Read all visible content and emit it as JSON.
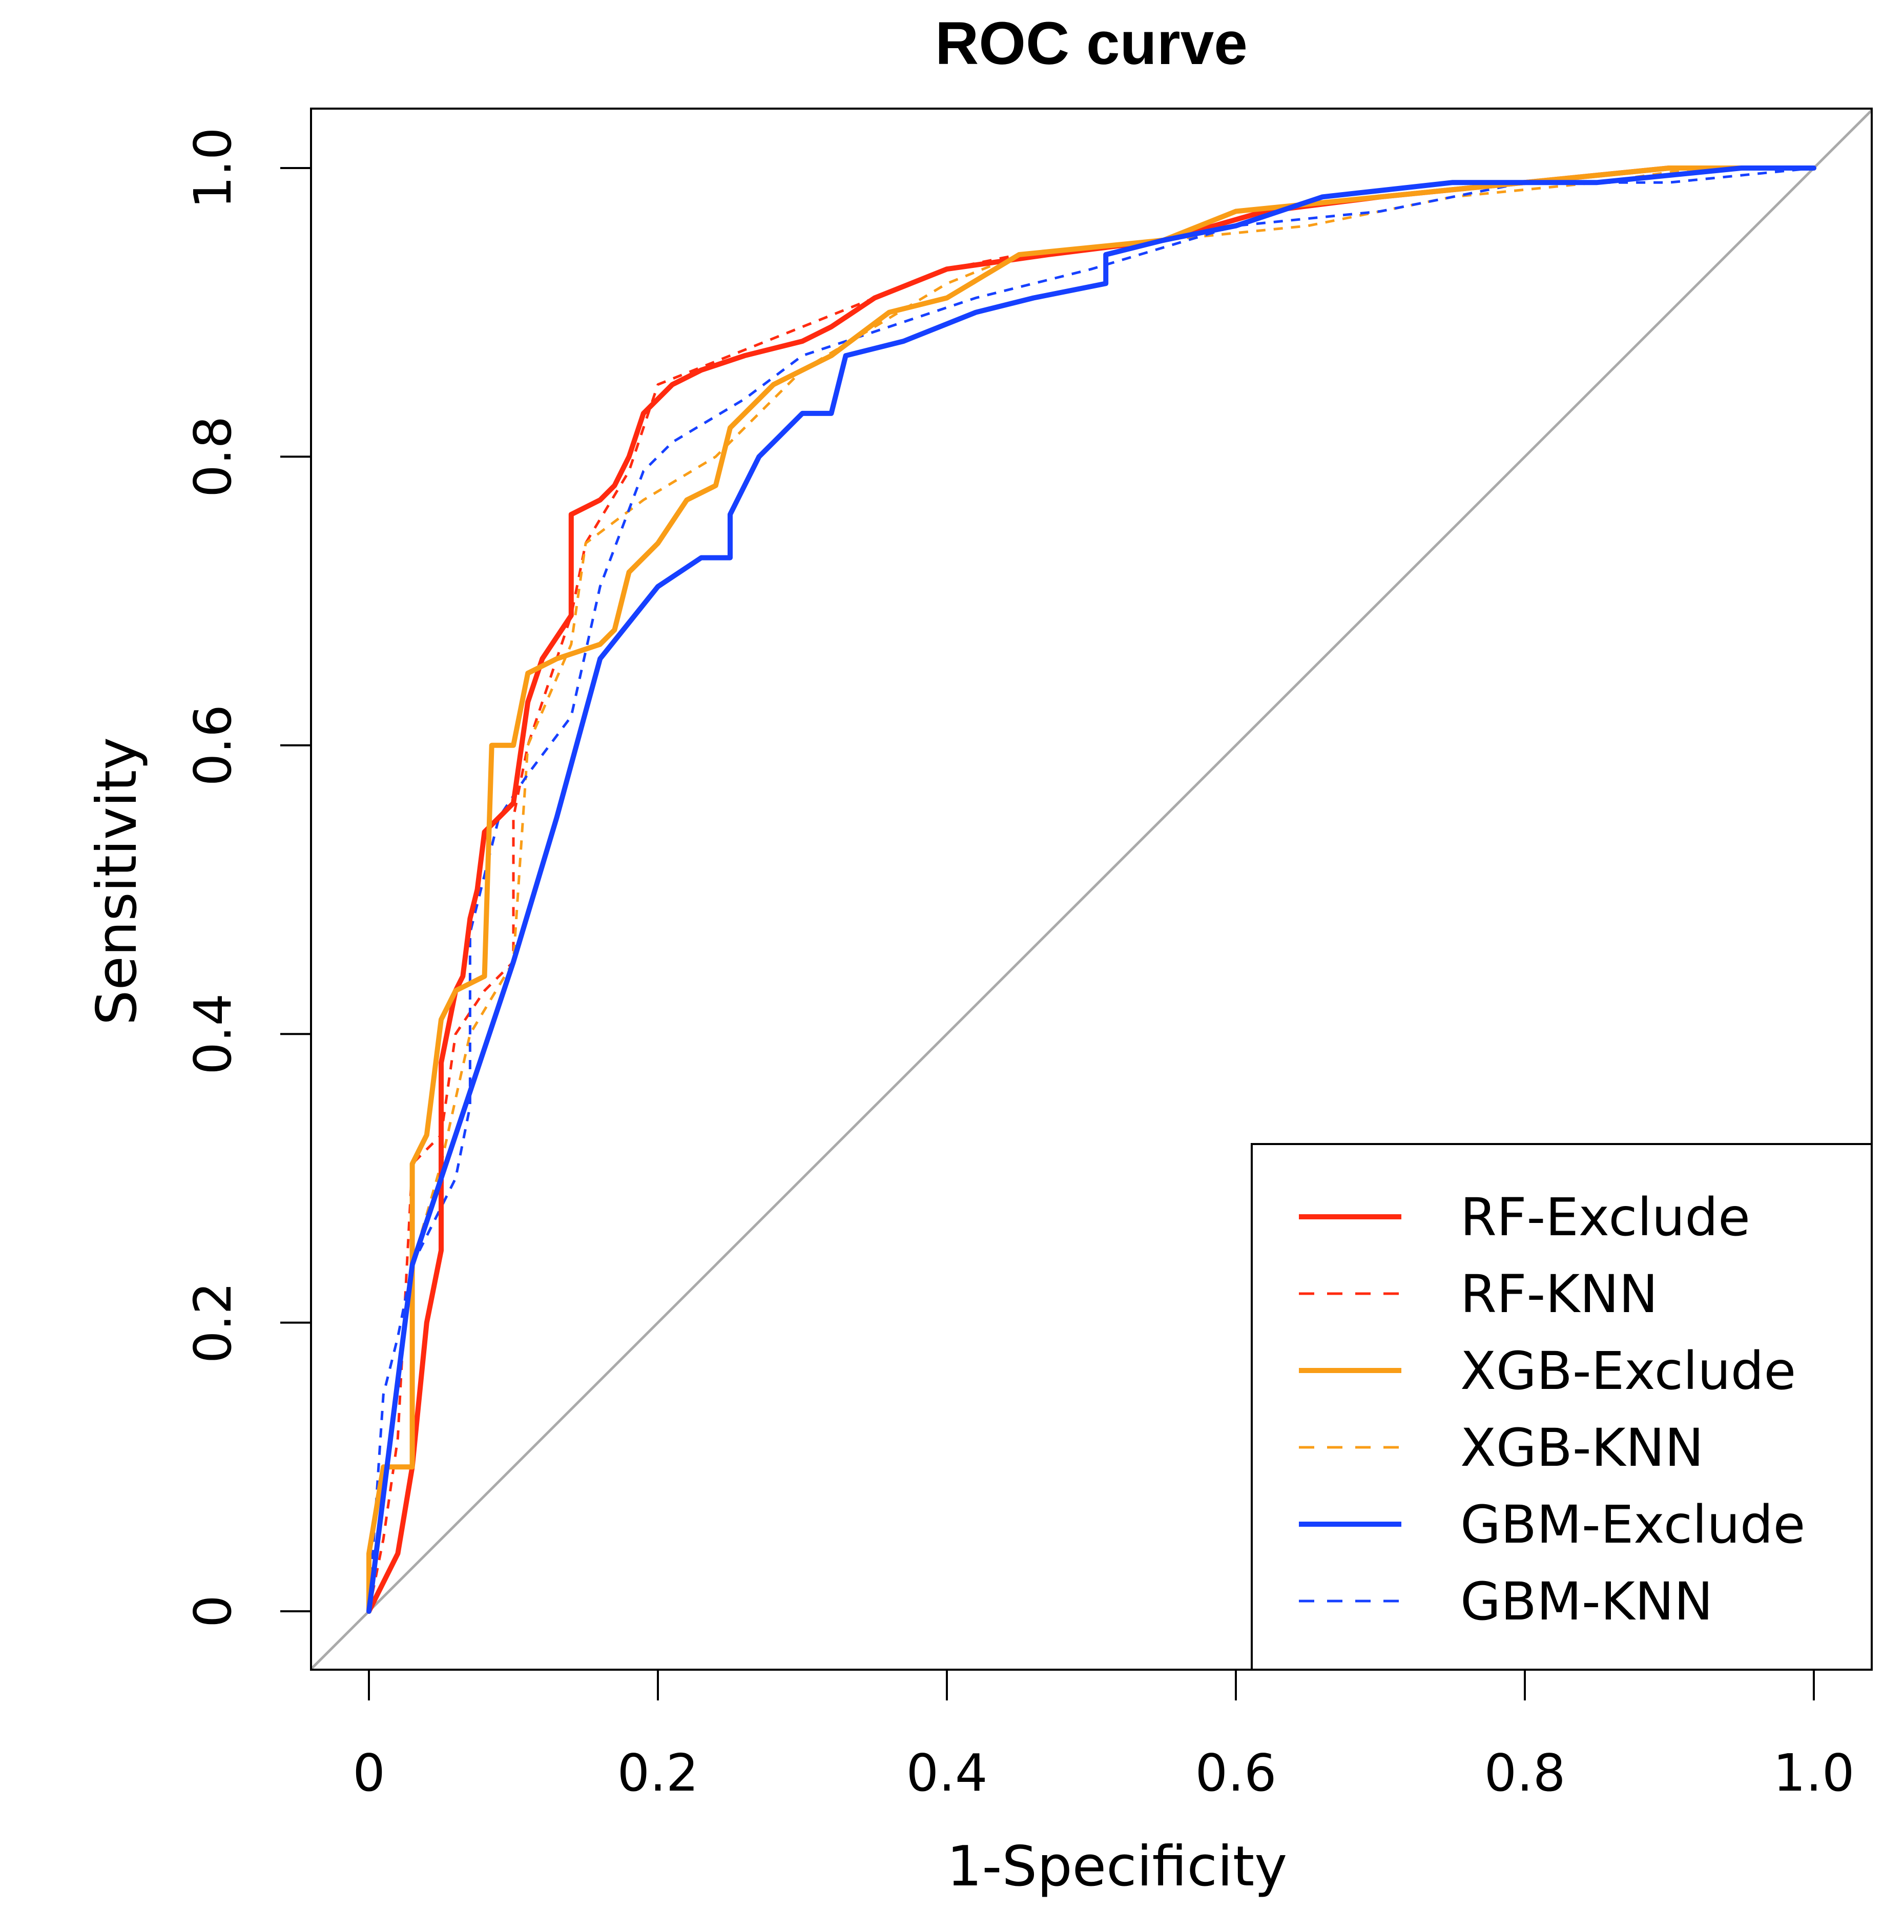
{
  "chart_data": {
    "type": "line",
    "title": "ROC curve",
    "xlabel": "1-Specificity",
    "ylabel": "Sensitivity",
    "xlim": [
      0,
      1
    ],
    "ylim": [
      0,
      1
    ],
    "x_ticks": [
      "0",
      "0.2",
      "0.4",
      "0.6",
      "0.8",
      "1.0"
    ],
    "y_ticks": [
      "0",
      "0.2",
      "0.4",
      "0.6",
      "0.8",
      "1.0"
    ],
    "grid": false,
    "legend_position": "bottom-right",
    "reference_line": {
      "from": [
        0,
        0
      ],
      "to": [
        1,
        1
      ],
      "color": "#aaaaaa"
    },
    "series": [
      {
        "name": "RF-Exclude",
        "color": "#ff2a0f",
        "style": "solid",
        "points": [
          [
            0,
            0
          ],
          [
            0.02,
            0.04
          ],
          [
            0.03,
            0.1
          ],
          [
            0.04,
            0.2
          ],
          [
            0.05,
            0.25
          ],
          [
            0.05,
            0.38
          ],
          [
            0.06,
            0.43
          ],
          [
            0.065,
            0.44
          ],
          [
            0.07,
            0.48
          ],
          [
            0.075,
            0.5
          ],
          [
            0.08,
            0.54
          ],
          [
            0.1,
            0.56
          ],
          [
            0.11,
            0.63
          ],
          [
            0.12,
            0.66
          ],
          [
            0.14,
            0.69
          ],
          [
            0.14,
            0.76
          ],
          [
            0.16,
            0.77
          ],
          [
            0.17,
            0.78
          ],
          [
            0.18,
            0.8
          ],
          [
            0.19,
            0.83
          ],
          [
            0.21,
            0.85
          ],
          [
            0.23,
            0.86
          ],
          [
            0.26,
            0.87
          ],
          [
            0.3,
            0.88
          ],
          [
            0.32,
            0.89
          ],
          [
            0.35,
            0.91
          ],
          [
            0.4,
            0.93
          ],
          [
            0.47,
            0.94
          ],
          [
            0.55,
            0.95
          ],
          [
            0.62,
            0.97
          ],
          [
            0.7,
            0.98
          ],
          [
            0.8,
            0.99
          ],
          [
            0.9,
            1.0
          ],
          [
            1.0,
            1.0
          ]
        ]
      },
      {
        "name": "RF-KNN",
        "color": "#ff2a0f",
        "style": "dashed",
        "points": [
          [
            0,
            0
          ],
          [
            0.01,
            0.05
          ],
          [
            0.02,
            0.12
          ],
          [
            0.03,
            0.31
          ],
          [
            0.05,
            0.33
          ],
          [
            0.06,
            0.4
          ],
          [
            0.08,
            0.43
          ],
          [
            0.1,
            0.45
          ],
          [
            0.1,
            0.55
          ],
          [
            0.11,
            0.6
          ],
          [
            0.14,
            0.69
          ],
          [
            0.15,
            0.74
          ],
          [
            0.18,
            0.79
          ],
          [
            0.19,
            0.82
          ],
          [
            0.2,
            0.85
          ],
          [
            0.25,
            0.87
          ],
          [
            0.3,
            0.89
          ],
          [
            0.35,
            0.91
          ],
          [
            0.4,
            0.93
          ],
          [
            0.45,
            0.94
          ],
          [
            0.55,
            0.95
          ],
          [
            0.62,
            0.97
          ],
          [
            0.7,
            0.98
          ],
          [
            0.8,
            0.99
          ],
          [
            0.9,
            1.0
          ],
          [
            1.0,
            1.0
          ]
        ]
      },
      {
        "name": "XGB-Exclude",
        "color": "#f99d17",
        "style": "solid",
        "points": [
          [
            0,
            0
          ],
          [
            0,
            0.04
          ],
          [
            0.01,
            0.1
          ],
          [
            0.03,
            0.1
          ],
          [
            0.03,
            0.31
          ],
          [
            0.04,
            0.33
          ],
          [
            0.045,
            0.37
          ],
          [
            0.05,
            0.41
          ],
          [
            0.06,
            0.43
          ],
          [
            0.08,
            0.44
          ],
          [
            0.085,
            0.6
          ],
          [
            0.1,
            0.6
          ],
          [
            0.11,
            0.65
          ],
          [
            0.13,
            0.66
          ],
          [
            0.16,
            0.67
          ],
          [
            0.17,
            0.68
          ],
          [
            0.18,
            0.72
          ],
          [
            0.2,
            0.74
          ],
          [
            0.22,
            0.77
          ],
          [
            0.24,
            0.78
          ],
          [
            0.25,
            0.82
          ],
          [
            0.28,
            0.85
          ],
          [
            0.32,
            0.87
          ],
          [
            0.36,
            0.9
          ],
          [
            0.4,
            0.91
          ],
          [
            0.45,
            0.94
          ],
          [
            0.55,
            0.95
          ],
          [
            0.6,
            0.97
          ],
          [
            0.7,
            0.98
          ],
          [
            0.8,
            0.99
          ],
          [
            0.9,
            1.0
          ],
          [
            1.0,
            1.0
          ]
        ]
      },
      {
        "name": "XGB-KNN",
        "color": "#f99d17",
        "style": "dashed",
        "points": [
          [
            0,
            0
          ],
          [
            0.01,
            0.08
          ],
          [
            0.03,
            0.24
          ],
          [
            0.05,
            0.31
          ],
          [
            0.07,
            0.4
          ],
          [
            0.1,
            0.45
          ],
          [
            0.11,
            0.6
          ],
          [
            0.14,
            0.67
          ],
          [
            0.15,
            0.74
          ],
          [
            0.19,
            0.77
          ],
          [
            0.24,
            0.8
          ],
          [
            0.3,
            0.86
          ],
          [
            0.35,
            0.89
          ],
          [
            0.4,
            0.92
          ],
          [
            0.45,
            0.94
          ],
          [
            0.55,
            0.95
          ],
          [
            0.65,
            0.96
          ],
          [
            0.75,
            0.98
          ],
          [
            0.85,
            0.99
          ],
          [
            0.92,
            1.0
          ],
          [
            1.0,
            1.0
          ]
        ]
      },
      {
        "name": "GBM-Exclude",
        "color": "#1640ff",
        "style": "solid",
        "points": [
          [
            0,
            0
          ],
          [
            0.03,
            0.24
          ],
          [
            0.06,
            0.33
          ],
          [
            0.1,
            0.45
          ],
          [
            0.13,
            0.55
          ],
          [
            0.16,
            0.66
          ],
          [
            0.2,
            0.71
          ],
          [
            0.23,
            0.73
          ],
          [
            0.25,
            0.73
          ],
          [
            0.25,
            0.76
          ],
          [
            0.26,
            0.78
          ],
          [
            0.27,
            0.8
          ],
          [
            0.29,
            0.82
          ],
          [
            0.3,
            0.83
          ],
          [
            0.32,
            0.83
          ],
          [
            0.33,
            0.87
          ],
          [
            0.37,
            0.88
          ],
          [
            0.42,
            0.9
          ],
          [
            0.46,
            0.91
          ],
          [
            0.51,
            0.92
          ],
          [
            0.51,
            0.94
          ],
          [
            0.55,
            0.95
          ],
          [
            0.6,
            0.96
          ],
          [
            0.66,
            0.98
          ],
          [
            0.75,
            0.99
          ],
          [
            0.85,
            0.99
          ],
          [
            0.95,
            1.0
          ],
          [
            1.0,
            1.0
          ]
        ]
      },
      {
        "name": "GBM-KNN",
        "color": "#1640ff",
        "style": "dashed",
        "points": [
          [
            0,
            0
          ],
          [
            0.01,
            0.15
          ],
          [
            0.02,
            0.19
          ],
          [
            0.03,
            0.24
          ],
          [
            0.04,
            0.26
          ],
          [
            0.06,
            0.3
          ],
          [
            0.07,
            0.35
          ],
          [
            0.07,
            0.47
          ],
          [
            0.09,
            0.55
          ],
          [
            0.11,
            0.58
          ],
          [
            0.14,
            0.62
          ],
          [
            0.16,
            0.71
          ],
          [
            0.19,
            0.79
          ],
          [
            0.21,
            0.81
          ],
          [
            0.26,
            0.84
          ],
          [
            0.3,
            0.87
          ],
          [
            0.36,
            0.89
          ],
          [
            0.42,
            0.91
          ],
          [
            0.5,
            0.93
          ],
          [
            0.6,
            0.96
          ],
          [
            0.7,
            0.97
          ],
          [
            0.8,
            0.99
          ],
          [
            0.9,
            0.99
          ],
          [
            1.0,
            1.0
          ]
        ]
      }
    ]
  }
}
